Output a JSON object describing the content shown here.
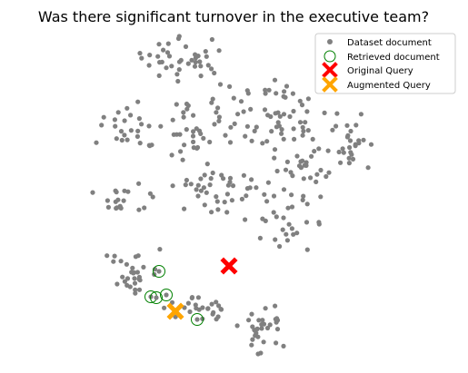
{
  "chart_data": {
    "type": "scatter",
    "title": "Was there significant turnover in the executive team?",
    "xlabel": "",
    "ylabel": "",
    "axes_visible": false,
    "legend_placement": "top-right",
    "colors": {
      "dataset": "#808080",
      "retrieved": "#008000",
      "original": "#ff0000",
      "augmented": "#ffa500"
    },
    "series": [
      {
        "name": "Dataset document",
        "marker": "dot",
        "clusters": [
          {
            "cx": 205,
            "cy": 65,
            "rx": 45,
            "ry": 22,
            "n": 40
          },
          {
            "cx": 140,
            "cy": 140,
            "rx": 30,
            "ry": 25,
            "n": 25
          },
          {
            "cx": 215,
            "cy": 135,
            "rx": 40,
            "ry": 30,
            "n": 35
          },
          {
            "cx": 300,
            "cy": 130,
            "rx": 55,
            "ry": 45,
            "n": 60
          },
          {
            "cx": 385,
            "cy": 160,
            "rx": 25,
            "ry": 30,
            "n": 25
          },
          {
            "cx": 335,
            "cy": 185,
            "rx": 40,
            "ry": 25,
            "n": 30
          },
          {
            "cx": 130,
            "cy": 220,
            "rx": 25,
            "ry": 20,
            "n": 18
          },
          {
            "cx": 245,
            "cy": 210,
            "rx": 50,
            "ry": 25,
            "n": 45
          },
          {
            "cx": 320,
            "cy": 245,
            "rx": 35,
            "ry": 25,
            "n": 25
          },
          {
            "cx": 145,
            "cy": 300,
            "rx": 25,
            "ry": 18,
            "n": 30
          },
          {
            "cx": 220,
            "cy": 340,
            "rx": 35,
            "ry": 20,
            "n": 25
          },
          {
            "cx": 290,
            "cy": 360,
            "rx": 25,
            "ry": 25,
            "n": 30
          }
        ]
      },
      {
        "name": "Retrieved document",
        "marker": "open-circle",
        "points": [
          [
            175,
            299
          ],
          [
            183,
            325
          ],
          [
            166,
            327
          ],
          [
            172,
            328
          ],
          [
            217,
            352
          ]
        ]
      },
      {
        "name": "Original Query",
        "marker": "x",
        "points": [
          [
            252,
            293
          ]
        ]
      },
      {
        "name": "Augmented Query",
        "marker": "x",
        "points": [
          [
            193,
            343
          ]
        ]
      }
    ]
  }
}
